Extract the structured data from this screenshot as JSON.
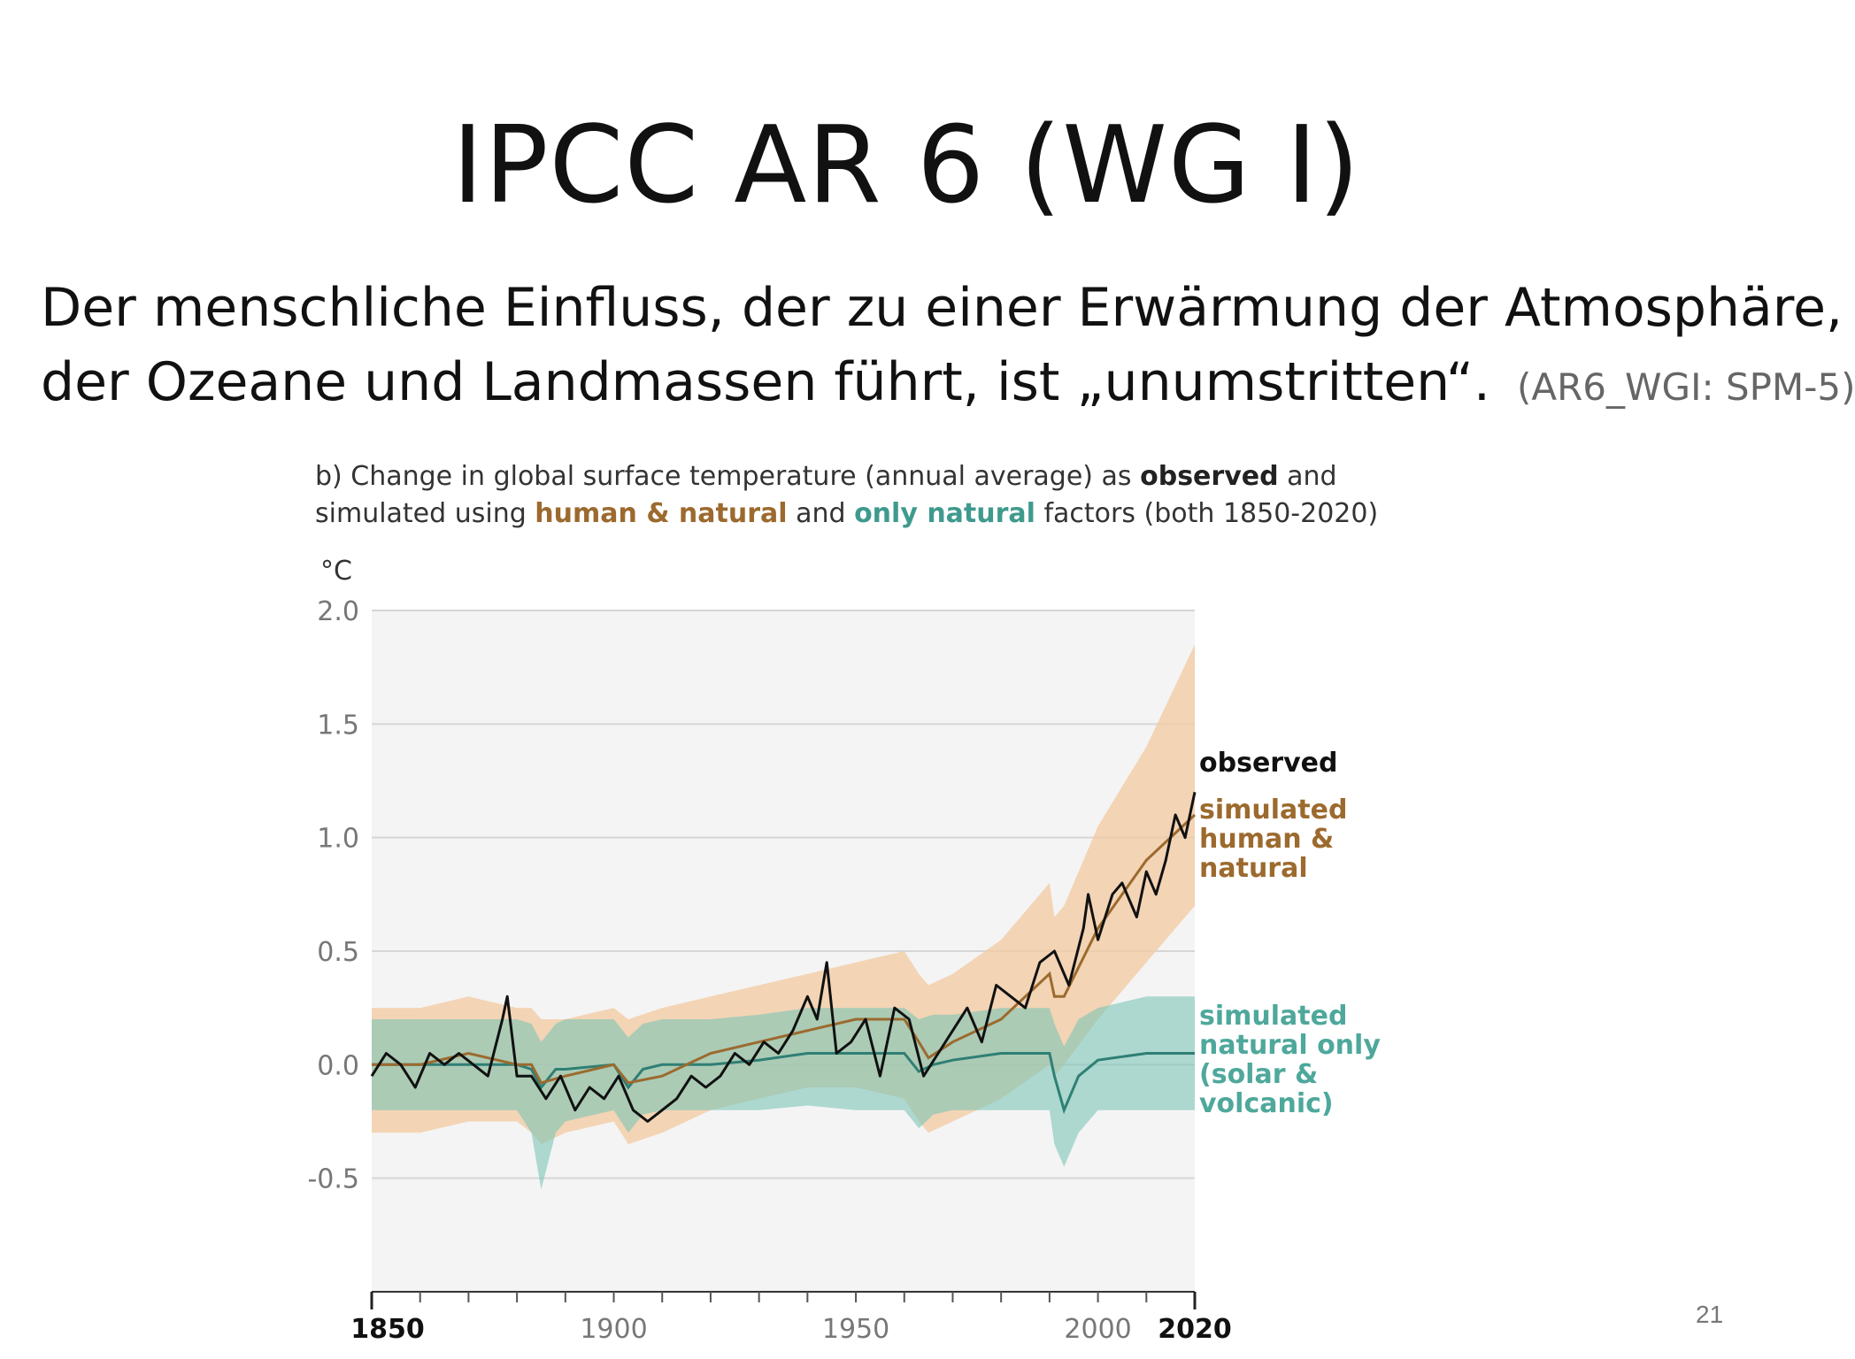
{
  "slide": {
    "title": "IPCC AR 6 (WG I)",
    "subtitle_line1": "Der menschliche Einfluss, der zu einer Erwärmung der Atmosphäre,",
    "subtitle_line2": "der Ozeane und Landmassen führt, ist „unumstritten“.",
    "source": "(AR6_WGI: SPM-5)",
    "page_number": "21"
  },
  "chart_heading": {
    "p1": "b) Change in global surface temperature (annual average) as ",
    "p2": "observed",
    "p3": " and",
    "p4": "simulated using ",
    "p5": "human & natural",
    "p6": " and ",
    "p7": "only natural",
    "p8": " factors (both 1850-2020)"
  },
  "colors": {
    "observed": "#111111",
    "human_natural_line": "#9c6a2e",
    "human_natural_band": "#f3c9a0",
    "natural_line": "#2f7f74",
    "natural_band": "#7cc4b6",
    "plot_background": "#f4f4f4"
  },
  "chart_data": {
    "type": "line",
    "ylabel": "°C",
    "ylim": [
      -1.0,
      2.0
    ],
    "xlim": [
      1850,
      2020
    ],
    "yticks": [
      2.0,
      1.5,
      1.0,
      0.5,
      0.0,
      -0.5
    ],
    "ytick_labels": [
      "2.0",
      "1.5",
      "1.0",
      "0.5",
      "0.0",
      "-0.5"
    ],
    "xticks_labeled": [
      1850,
      1900,
      1950,
      2000,
      2020
    ],
    "xtick_labels": [
      "1850",
      "1900",
      "1950",
      "2000",
      "2020"
    ],
    "xticks_bold": [
      1850,
      2020
    ],
    "xticks_minor_step": 10,
    "grid": true,
    "legend": {
      "observed": "observed",
      "hn1": "simulated",
      "hn2": "human &",
      "hn3": "natural",
      "nat1": "simulated",
      "nat2": "natural only",
      "nat3": "(solar &",
      "nat4": "volcanic)"
    },
    "series": [
      {
        "key": "observed",
        "x": [
          1850,
          1853,
          1856,
          1859,
          1862,
          1865,
          1868,
          1871,
          1874,
          1877,
          1878,
          1880,
          1883,
          1886,
          1889,
          1892,
          1895,
          1898,
          1901,
          1904,
          1907,
          1910,
          1913,
          1916,
          1919,
          1922,
          1925,
          1928,
          1931,
          1934,
          1937,
          1940,
          1942,
          1944,
          1946,
          1949,
          1952,
          1955,
          1958,
          1961,
          1964,
          1967,
          1970,
          1973,
          1976,
          1979,
          1982,
          1985,
          1988,
          1991,
          1994,
          1997,
          1998,
          2000,
          2003,
          2005,
          2008,
          2010,
          2012,
          2014,
          2016,
          2018,
          2020
        ],
        "values": [
          -0.05,
          0.05,
          0.0,
          -0.1,
          0.05,
          0.0,
          0.05,
          0.0,
          -0.05,
          0.2,
          0.3,
          -0.05,
          -0.05,
          -0.15,
          -0.05,
          -0.2,
          -0.1,
          -0.15,
          -0.05,
          -0.2,
          -0.25,
          -0.2,
          -0.15,
          -0.05,
          -0.1,
          -0.05,
          0.05,
          0.0,
          0.1,
          0.05,
          0.15,
          0.3,
          0.2,
          0.45,
          0.05,
          0.1,
          0.2,
          -0.05,
          0.25,
          0.2,
          -0.05,
          0.05,
          0.15,
          0.25,
          0.1,
          0.35,
          0.3,
          0.25,
          0.45,
          0.5,
          0.35,
          0.6,
          0.75,
          0.55,
          0.75,
          0.8,
          0.65,
          0.85,
          0.75,
          0.9,
          1.1,
          1.0,
          1.2
        ]
      },
      {
        "key": "human_natural",
        "x": [
          1850,
          1860,
          1870,
          1880,
          1883,
          1885,
          1890,
          1900,
          1903,
          1910,
          1920,
          1930,
          1940,
          1950,
          1960,
          1963,
          1965,
          1970,
          1980,
          1990,
          1991,
          1993,
          2000,
          2010,
          2020
        ],
        "values": [
          0.0,
          0.0,
          0.05,
          0.0,
          0.0,
          -0.08,
          -0.05,
          0.0,
          -0.08,
          -0.05,
          0.05,
          0.1,
          0.15,
          0.2,
          0.2,
          0.1,
          0.03,
          0.1,
          0.2,
          0.4,
          0.3,
          0.3,
          0.6,
          0.9,
          1.1
        ],
        "band_lower": [
          -0.3,
          -0.3,
          -0.25,
          -0.25,
          -0.3,
          -0.35,
          -0.3,
          -0.25,
          -0.35,
          -0.3,
          -0.2,
          -0.15,
          -0.1,
          -0.1,
          -0.15,
          -0.25,
          -0.3,
          -0.25,
          -0.15,
          0.0,
          -0.05,
          0.0,
          0.2,
          0.45,
          0.7
        ],
        "band_upper": [
          0.25,
          0.25,
          0.3,
          0.25,
          0.25,
          0.2,
          0.2,
          0.25,
          0.2,
          0.25,
          0.3,
          0.35,
          0.4,
          0.45,
          0.5,
          0.4,
          0.35,
          0.4,
          0.55,
          0.8,
          0.65,
          0.7,
          1.05,
          1.4,
          1.85
        ]
      },
      {
        "key": "natural_only",
        "x": [
          1850,
          1860,
          1870,
          1880,
          1883,
          1885,
          1888,
          1890,
          1900,
          1903,
          1906,
          1910,
          1920,
          1930,
          1940,
          1950,
          1960,
          1963,
          1966,
          1970,
          1980,
          1990,
          1991,
          1993,
          1996,
          2000,
          2010,
          2020
        ],
        "values": [
          0.0,
          0.0,
          0.0,
          0.0,
          -0.02,
          -0.1,
          -0.02,
          -0.02,
          0.0,
          -0.1,
          -0.02,
          0.0,
          0.0,
          0.02,
          0.05,
          0.05,
          0.05,
          -0.03,
          0.0,
          0.02,
          0.05,
          0.05,
          -0.05,
          -0.2,
          -0.05,
          0.02,
          0.05,
          0.05
        ],
        "band_lower": [
          -0.2,
          -0.2,
          -0.2,
          -0.2,
          -0.3,
          -0.55,
          -0.3,
          -0.25,
          -0.2,
          -0.3,
          -0.22,
          -0.2,
          -0.2,
          -0.2,
          -0.18,
          -0.2,
          -0.2,
          -0.28,
          -0.22,
          -0.2,
          -0.2,
          -0.2,
          -0.35,
          -0.45,
          -0.3,
          -0.2,
          -0.2,
          -0.2
        ],
        "band_upper": [
          0.2,
          0.2,
          0.2,
          0.2,
          0.18,
          0.1,
          0.18,
          0.2,
          0.2,
          0.12,
          0.18,
          0.2,
          0.2,
          0.22,
          0.25,
          0.25,
          0.25,
          0.2,
          0.22,
          0.22,
          0.25,
          0.25,
          0.18,
          0.08,
          0.2,
          0.25,
          0.3,
          0.3
        ]
      }
    ]
  }
}
